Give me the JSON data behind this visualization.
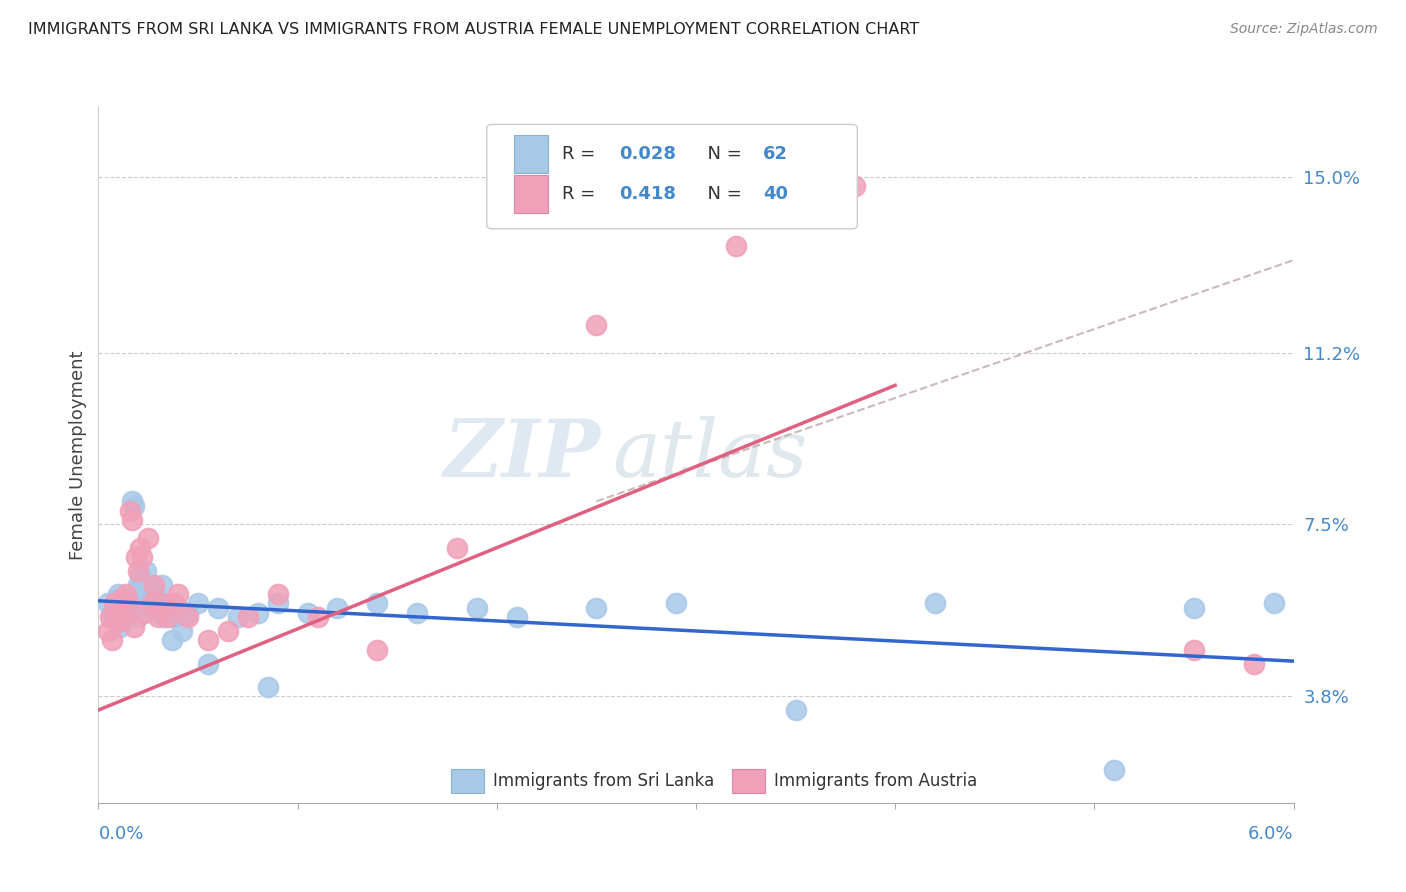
{
  "title": "IMMIGRANTS FROM SRI LANKA VS IMMIGRANTS FROM AUSTRIA FEMALE UNEMPLOYMENT CORRELATION CHART",
  "source": "Source: ZipAtlas.com",
  "ylabel": "Female Unemployment",
  "yticks": [
    3.8,
    7.5,
    11.2,
    15.0
  ],
  "ytick_labels": [
    "3.8%",
    "7.5%",
    "11.2%",
    "15.0%"
  ],
  "xmin": 0.0,
  "xmax": 6.0,
  "ymin": 1.5,
  "ymax": 16.5,
  "color_sri_lanka": "#a8c8e8",
  "color_austria": "#f0a0b8",
  "color_trend_blue": "#3366cc",
  "color_trend_pink": "#e06080",
  "color_trend_dashed": "#c0a8a8",
  "color_blue_text": "#4488cc",
  "background_color": "#ffffff",
  "watermark_zip": "ZIP",
  "watermark_atlas": "atlas",
  "sri_lanka_x": [
    0.05,
    0.07,
    0.08,
    0.09,
    0.1,
    0.1,
    0.11,
    0.11,
    0.12,
    0.12,
    0.13,
    0.13,
    0.14,
    0.14,
    0.15,
    0.15,
    0.16,
    0.17,
    0.17,
    0.18,
    0.18,
    0.19,
    0.2,
    0.2,
    0.21,
    0.22,
    0.23,
    0.23,
    0.24,
    0.25,
    0.26,
    0.27,
    0.28,
    0.3,
    0.32,
    0.33,
    0.35,
    0.37,
    0.38,
    0.4,
    0.42,
    0.45,
    0.5,
    0.55,
    0.6,
    0.7,
    0.8,
    0.85,
    0.9,
    1.05,
    1.2,
    1.4,
    1.6,
    1.9,
    2.1,
    2.5,
    2.9,
    3.5,
    4.2,
    5.1,
    5.5,
    5.9
  ],
  "sri_lanka_y": [
    5.8,
    5.6,
    5.5,
    5.9,
    6.0,
    5.4,
    5.7,
    5.3,
    5.8,
    5.9,
    5.6,
    5.5,
    5.7,
    5.8,
    5.5,
    5.6,
    5.8,
    5.9,
    8.0,
    7.9,
    5.7,
    5.8,
    6.2,
    5.5,
    6.4,
    6.3,
    6.0,
    5.9,
    6.5,
    6.2,
    5.8,
    5.7,
    6.0,
    5.6,
    6.2,
    5.5,
    5.8,
    5.0,
    5.5,
    5.7,
    5.2,
    5.6,
    5.8,
    4.5,
    5.7,
    5.5,
    5.6,
    4.0,
    5.8,
    5.6,
    5.7,
    5.8,
    5.6,
    5.7,
    5.5,
    5.7,
    5.8,
    3.5,
    5.8,
    2.2,
    5.7,
    5.8
  ],
  "austria_x": [
    0.05,
    0.06,
    0.07,
    0.08,
    0.09,
    0.1,
    0.11,
    0.12,
    0.13,
    0.14,
    0.15,
    0.16,
    0.17,
    0.18,
    0.19,
    0.2,
    0.21,
    0.22,
    0.23,
    0.25,
    0.27,
    0.28,
    0.3,
    0.32,
    0.35,
    0.38,
    0.4,
    0.45,
    0.55,
    0.65,
    0.75,
    0.9,
    1.1,
    1.4,
    1.8,
    2.5,
    3.2,
    3.8,
    5.5,
    5.8
  ],
  "austria_y": [
    5.2,
    5.5,
    5.0,
    5.8,
    5.6,
    5.4,
    5.7,
    5.9,
    5.5,
    6.0,
    5.8,
    7.8,
    7.6,
    5.3,
    6.8,
    6.5,
    7.0,
    6.8,
    5.6,
    7.2,
    5.8,
    6.2,
    5.5,
    5.8,
    5.5,
    5.8,
    6.0,
    5.5,
    5.0,
    5.2,
    5.5,
    6.0,
    5.5,
    4.8,
    7.0,
    11.8,
    13.5,
    14.8,
    4.8,
    4.5
  ],
  "sl_trend_x": [
    0.0,
    6.0
  ],
  "sl_trend_y": [
    5.65,
    5.82
  ],
  "at_trend_x0": 0.0,
  "at_trend_x1": 4.0,
  "at_trend_y0": 3.5,
  "at_trend_y1": 10.5,
  "at_dashed_x0": 2.5,
  "at_dashed_x1": 6.0,
  "at_dashed_y0": 8.0,
  "at_dashed_y1": 13.2
}
